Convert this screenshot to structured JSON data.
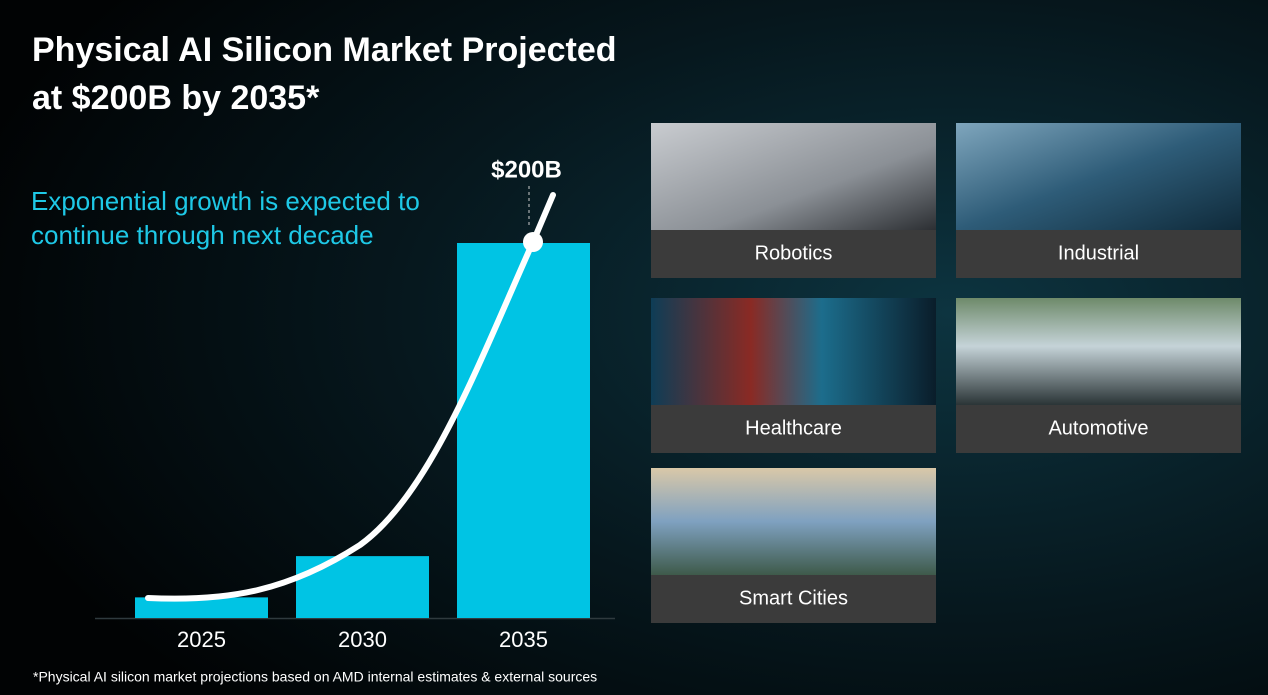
{
  "header": {
    "title_lines": [
      "Physical AI Silicon Market Projected",
      "at $200B by 2035*"
    ],
    "subtitle_lines": [
      "Exponential growth is expected to",
      "continue through next decade"
    ]
  },
  "chart_data": {
    "type": "bar",
    "categories": [
      "2025",
      "2030",
      "2035"
    ],
    "values": [
      11,
      33,
      200
    ],
    "value_labels": [
      null,
      null,
      "$200B"
    ],
    "color": "#00c4e4"
  },
  "tiles": [
    {
      "label": "Robotics"
    },
    {
      "label": "Industrial"
    },
    {
      "label": "Healthcare"
    },
    {
      "label": "Automotive"
    },
    {
      "label": "Smart Cities"
    }
  ],
  "footnote": "*Physical AI silicon market projections based on AMD internal estimates & external sources"
}
